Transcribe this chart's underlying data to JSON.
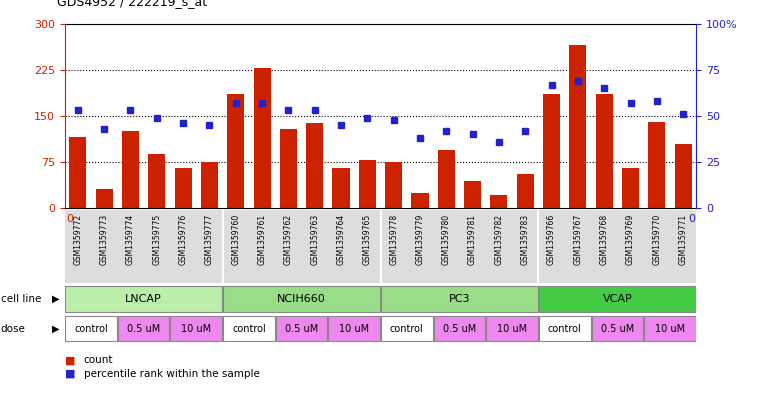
{
  "title": "GDS4952 / 222219_s_at",
  "samples": [
    "GSM1359772",
    "GSM1359773",
    "GSM1359774",
    "GSM1359775",
    "GSM1359776",
    "GSM1359777",
    "GSM1359760",
    "GSM1359761",
    "GSM1359762",
    "GSM1359763",
    "GSM1359764",
    "GSM1359765",
    "GSM1359778",
    "GSM1359779",
    "GSM1359780",
    "GSM1359781",
    "GSM1359782",
    "GSM1359783",
    "GSM1359766",
    "GSM1359767",
    "GSM1359768",
    "GSM1359769",
    "GSM1359770",
    "GSM1359771"
  ],
  "counts": [
    115,
    32,
    125,
    88,
    65,
    75,
    185,
    228,
    128,
    138,
    65,
    78,
    75,
    25,
    95,
    45,
    22,
    55,
    185,
    265,
    185,
    65,
    140,
    105
  ],
  "percentiles": [
    53,
    43,
    53,
    49,
    46,
    45,
    57,
    57,
    53,
    53,
    45,
    49,
    48,
    38,
    42,
    40,
    36,
    42,
    67,
    69,
    65,
    57,
    58,
    51
  ],
  "bar_color": "#cc2200",
  "percentile_color": "#2222cc",
  "ylim_left": [
    0,
    300
  ],
  "ylim_right": [
    0,
    100
  ],
  "yticks_left": [
    0,
    75,
    150,
    225,
    300
  ],
  "yticks_right": [
    0,
    25,
    50,
    75,
    100
  ],
  "cell_line_groups": [
    {
      "label": "LNCAP",
      "start": 0,
      "end": 6,
      "color": "#bbeeaa"
    },
    {
      "label": "NCIH660",
      "start": 6,
      "end": 12,
      "color": "#99dd88"
    },
    {
      "label": "PC3",
      "start": 12,
      "end": 18,
      "color": "#99dd88"
    },
    {
      "label": "VCAP",
      "start": 18,
      "end": 24,
      "color": "#44cc44"
    }
  ],
  "dose_groups": [
    {
      "label": "control",
      "start": 0,
      "end": 2,
      "color": "#ffffff"
    },
    {
      "label": "0.5 uM",
      "start": 2,
      "end": 4,
      "color": "#ee88ee"
    },
    {
      "label": "10 uM",
      "start": 4,
      "end": 6,
      "color": "#ee88ee"
    },
    {
      "label": "control",
      "start": 6,
      "end": 8,
      "color": "#ffffff"
    },
    {
      "label": "0.5 uM",
      "start": 8,
      "end": 10,
      "color": "#ee88ee"
    },
    {
      "label": "10 uM",
      "start": 10,
      "end": 12,
      "color": "#ee88ee"
    },
    {
      "label": "control",
      "start": 12,
      "end": 14,
      "color": "#ffffff"
    },
    {
      "label": "0.5 uM",
      "start": 14,
      "end": 16,
      "color": "#ee88ee"
    },
    {
      "label": "10 uM",
      "start": 16,
      "end": 18,
      "color": "#ee88ee"
    },
    {
      "label": "control",
      "start": 18,
      "end": 20,
      "color": "#ffffff"
    },
    {
      "label": "0.5 uM",
      "start": 20,
      "end": 22,
      "color": "#ee88ee"
    },
    {
      "label": "10 uM",
      "start": 22,
      "end": 24,
      "color": "#ee88ee"
    }
  ],
  "xtick_bg_color": "#dddddd",
  "cell_line_label_color": "#000000",
  "dose_label_color": "#000000"
}
